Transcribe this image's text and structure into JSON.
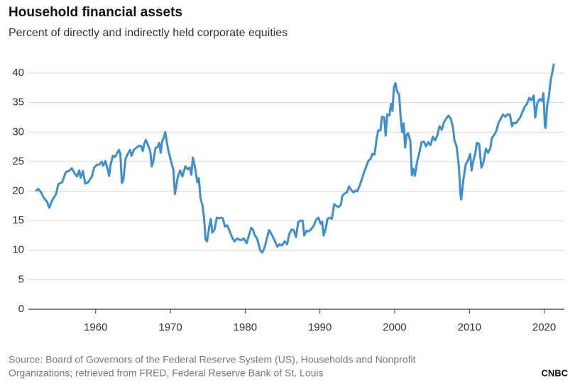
{
  "chart_data": {
    "type": "line",
    "title": "Household financial assets",
    "subtitle": "Percent of directly and indirectly held corporate equities",
    "source": [
      "Source: Board of Governors of the Federal Reserve System (US), Households and Nonprofit",
      "Organizations; retrieved from FRED, Federal Reserve Bank of St. Louis"
    ],
    "logo_text": "CNBC",
    "xlim": [
      1951,
      2022.7
    ],
    "xticks": [
      1960,
      1970,
      1980,
      1990,
      2000,
      2010,
      2020
    ],
    "ylim": [
      0,
      42
    ],
    "yticks": [
      0,
      5,
      10,
      15,
      20,
      25,
      30,
      35,
      40
    ],
    "grid": true,
    "series": [
      {
        "color": "#3d8fd1",
        "x": [
          1952,
          1952.3,
          1952.7,
          1953,
          1953.5,
          1953.8,
          1954.2,
          1954.7,
          1955,
          1955.5,
          1956,
          1956.5,
          1956.8,
          1957.2,
          1957.5,
          1957.8,
          1958,
          1958.3,
          1958.6,
          1959,
          1959.5,
          1959.8,
          1960.2,
          1960.5,
          1960.8,
          1961,
          1961.3,
          1961.6,
          1961.8,
          1962,
          1962.3,
          1962.6,
          1962.9,
          1963.1,
          1963.3,
          1963.5,
          1963.7,
          1964,
          1964.3,
          1964.6,
          1964.8,
          1965.1,
          1965.5,
          1965.8,
          1966.1,
          1966.3,
          1966.5,
          1966.7,
          1967,
          1967.3,
          1967.5,
          1967.7,
          1968,
          1968.3,
          1968.5,
          1968.7,
          1968.9,
          1969.1,
          1969.3,
          1969.5,
          1969.7,
          1970,
          1970.2,
          1970.4,
          1970.6,
          1970.8,
          1971,
          1971.3,
          1971.6,
          1972,
          1972.3,
          1972.6,
          1972.8,
          1973,
          1973.3,
          1973.6,
          1973.8,
          1974,
          1974.3,
          1974.5,
          1974.7,
          1974.9,
          1975.2,
          1975.4,
          1975.6,
          1975.9,
          1976.2,
          1976.5,
          1976.8,
          1977,
          1977.3,
          1977.6,
          1978,
          1978.3,
          1978.6,
          1978.9,
          1979.2,
          1979.5,
          1979.8,
          1980.2,
          1980.5,
          1980.8,
          1981,
          1981.3,
          1981.6,
          1982,
          1982.3,
          1982.6,
          1982.9,
          1983.2,
          1983.5,
          1983.8,
          1984,
          1984.3,
          1984.6,
          1984.9,
          1985.3,
          1985.6,
          1985.9,
          1986.2,
          1986.5,
          1986.8,
          1987.1,
          1987.4,
          1987.7,
          1987.9,
          1988.2,
          1988.5,
          1988.8,
          1989.2,
          1989.5,
          1989.8,
          1990.1,
          1990.3,
          1990.5,
          1990.8,
          1991,
          1991.3,
          1991.6,
          1991.9,
          1992.2,
          1992.5,
          1992.8,
          1993,
          1993.3,
          1993.6,
          1993.9,
          1994.2,
          1994.5,
          1994.8,
          1995,
          1995.4,
          1995.8,
          1996.2,
          1996.5,
          1996.8,
          1997,
          1997.3,
          1997.6,
          1997.8,
          1998.1,
          1998.3,
          1998.6,
          1998.8,
          1999,
          1999.3,
          1999.5,
          1999.7,
          1999.9,
          2000.1,
          2000.3,
          2000.6,
          2000.8,
          2001,
          2001.2,
          2001.4,
          2001.6,
          2001.8,
          2002.1,
          2002.3,
          2002.5,
          2002.7,
          2003,
          2003.3,
          2003.6,
          2003.9,
          2004.2,
          2004.5,
          2004.8,
          2005.1,
          2005.4,
          2005.7,
          2006,
          2006.3,
          2006.6,
          2006.9,
          2007.2,
          2007.5,
          2007.8,
          2008,
          2008.3,
          2008.6,
          2008.8,
          2008.9,
          2009.2,
          2009.5,
          2009.8,
          2010.1,
          2010.3,
          2010.5,
          2010.8,
          2011,
          2011.3,
          2011.6,
          2011.9,
          2012.2,
          2012.5,
          2012.8,
          2013,
          2013.3,
          2013.6,
          2013.9,
          2014.2,
          2014.5,
          2014.8,
          2015.1,
          2015.4,
          2015.7,
          2015.9,
          2016.2,
          2016.5,
          2016.8,
          2017.1,
          2017.4,
          2017.7,
          2018,
          2018.3,
          2018.6,
          2018.8,
          2019.1,
          2019.4,
          2019.7,
          2019.9,
          2020.1,
          2020.2,
          2020.4,
          2020.6,
          2020.9,
          2021.1,
          2021.3
        ],
        "values": [
          20,
          20.4,
          19.8,
          19,
          18.2,
          17.2,
          18.5,
          19.5,
          21.2,
          21.5,
          23.2,
          23.5,
          23.9,
          23,
          22.5,
          23.5,
          22.3,
          23.4,
          21.3,
          21.5,
          22.5,
          24,
          24.5,
          24.5,
          25,
          24.3,
          25.1,
          23.7,
          22.6,
          24.5,
          26,
          25.8,
          26.5,
          27,
          26.4,
          21.4,
          21.9,
          25.5,
          26.3,
          27,
          26,
          27,
          27.4,
          27.7,
          27.6,
          26.8,
          28,
          28.7,
          27.8,
          26.8,
          24.2,
          25,
          27.3,
          27.5,
          28.2,
          26.5,
          28.5,
          29,
          30,
          28.5,
          27,
          25.5,
          24.5,
          23.6,
          19.5,
          21,
          22.5,
          23.5,
          22.5,
          24.2,
          23.7,
          24,
          22.8,
          25.7,
          24,
          21.5,
          22.2,
          19,
          17.5,
          15.5,
          11.8,
          11.5,
          14,
          15.3,
          13,
          13.5,
          15.5,
          15.4,
          15.5,
          15.4,
          14,
          14.2,
          13,
          12,
          11.5,
          12,
          11.8,
          11.7,
          12,
          11.2,
          12.5,
          13.8,
          13.6,
          12.5,
          12,
          10,
          9.6,
          10.5,
          12,
          13.4,
          12.8,
          12,
          11.5,
          10.6,
          11,
          10.8,
          11.5,
          11,
          12.7,
          13.5,
          13.4,
          12.2,
          14.8,
          15,
          15,
          12.5,
          13.3,
          13.2,
          13.5,
          14.2,
          15.2,
          15.5,
          14.5,
          14.8,
          12.5,
          13.8,
          15.3,
          15.5,
          15.3,
          17.8,
          17.5,
          17.3,
          17.7,
          19.2,
          19.6,
          19.8,
          20.8,
          20.2,
          19.8,
          20.1,
          20,
          21.2,
          22.8,
          24.2,
          25.2,
          25.5,
          26.3,
          26.2,
          29,
          30.3,
          30.3,
          32.6,
          32.5,
          29.4,
          33,
          32.8,
          34.8,
          33.6,
          37.6,
          38.3,
          37,
          36.3,
          32.5,
          30,
          31.5,
          27.4,
          29.6,
          29.8,
          28.5,
          22.7,
          23.8,
          22.6,
          25,
          26.5,
          28.3,
          28.4,
          27.6,
          28.3,
          27.8,
          29.2,
          28.6,
          29.4,
          31,
          30.4,
          31.7,
          32.3,
          32.8,
          32.3,
          30.8,
          28.6,
          27.5,
          24,
          19.5,
          18.6,
          22,
          24.5,
          25.2,
          26.3,
          23.5,
          25,
          26.5,
          28.2,
          28,
          24,
          25,
          27.2,
          26.5,
          27.3,
          29,
          29.5,
          30.2,
          31.6,
          32.3,
          33,
          32.6,
          33,
          33,
          31,
          31.6,
          31.5,
          32,
          32.5,
          33.4,
          34.3,
          34.8,
          35.8,
          35.4,
          36.2,
          32.5,
          35,
          35.6,
          35.3,
          36.6,
          31,
          30.7,
          34.5,
          35.8,
          39,
          40.2,
          41.6
        ]
      }
    ]
  }
}
